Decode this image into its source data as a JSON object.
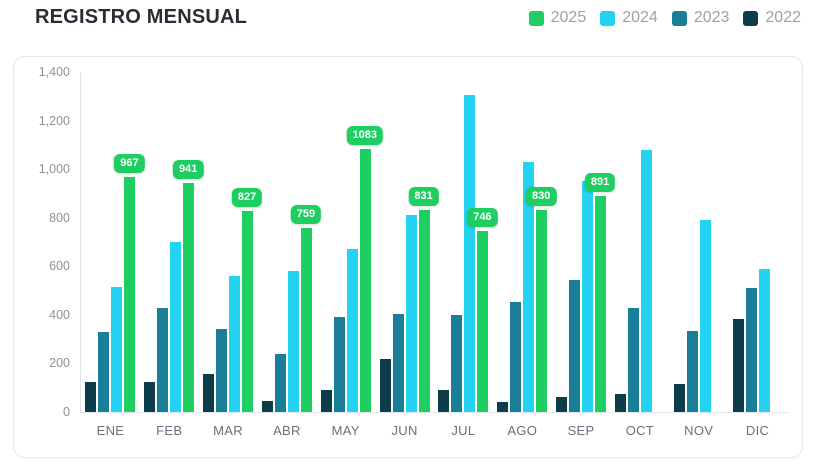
{
  "header": {
    "title": "REGISTRO MENSUAL"
  },
  "legend": [
    {
      "label": "2025",
      "color": "#1ECE60"
    },
    {
      "label": "2024",
      "color": "#24D2F2"
    },
    {
      "label": "2023",
      "color": "#1A7E99"
    },
    {
      "label": "2022",
      "color": "#0D3D4B"
    }
  ],
  "chart_data": {
    "type": "bar",
    "title": "REGISTRO MENSUAL",
    "categories": [
      "ENE",
      "FEB",
      "MAR",
      "ABR",
      "MAY",
      "JUN",
      "JUL",
      "AGO",
      "SEP",
      "OCT",
      "NOV",
      "DIC"
    ],
    "series": [
      {
        "name": "2022",
        "color": "#0D3D4B",
        "values": [
          125,
          125,
          155,
          45,
          90,
          220,
          90,
          40,
          60,
          75,
          115,
          385
        ]
      },
      {
        "name": "2023",
        "color": "#1A7E99",
        "values": [
          330,
          430,
          340,
          240,
          390,
          405,
          400,
          455,
          545,
          430,
          335,
          510
        ]
      },
      {
        "name": "2024",
        "color": "#24D2F2",
        "values": [
          515,
          700,
          560,
          580,
          670,
          810,
          1305,
          1030,
          950,
          1080,
          790,
          590
        ]
      },
      {
        "name": "2025",
        "color": "#1ECE60",
        "data_labels": true,
        "values": [
          967,
          941,
          827,
          759,
          1083,
          831,
          746,
          830,
          891,
          null,
          null,
          null
        ]
      }
    ],
    "ylim": [
      0,
      1400
    ],
    "ytick_step": 200,
    "ytick_labels": [
      "0",
      "200",
      "400",
      "600",
      "800",
      "1,000",
      "1,200",
      "1,400"
    ],
    "grid": false,
    "legend_position": "top-right",
    "data_label_text_color": "#ffffff"
  }
}
